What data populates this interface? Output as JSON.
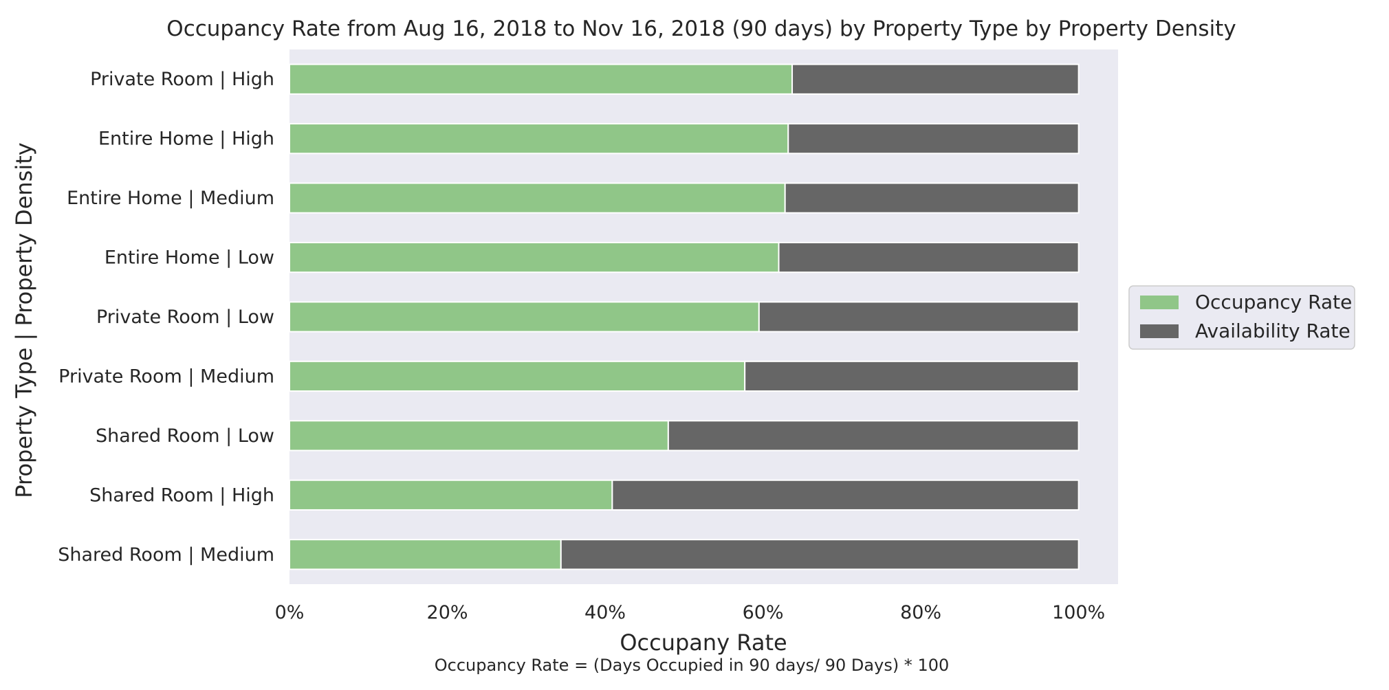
{
  "chart_data": {
    "type": "bar",
    "orientation": "horizontal",
    "stacked": true,
    "title": "Occupancy Rate from Aug 16, 2018 to Nov 16, 2018 (90 days) by Property Type by Property Density",
    "xlabel": "Occupany Rate",
    "ylabel": "Property Type | Property Density",
    "footnote": "Occupancy Rate = (Days Occupied in 90 days/ 90 Days) * 100",
    "categories": [
      "Private Room | High",
      "Entire Home | High",
      "Entire Home | Medium",
      "Entire Home | Low",
      "Private Room | Low",
      "Private Room | Medium",
      "Shared Room | Low",
      "Shared Room | High",
      "Shared Room | Medium"
    ],
    "series": [
      {
        "name": "Occupancy Rate",
        "color": "#90c688",
        "values": [
          63.7,
          63.2,
          62.8,
          62.0,
          59.5,
          57.7,
          48.0,
          40.9,
          34.4
        ]
      },
      {
        "name": "Availability Rate",
        "color": "#666666",
        "values": [
          36.3,
          36.8,
          37.2,
          38.0,
          40.5,
          42.3,
          52.0,
          59.1,
          65.6
        ]
      }
    ],
    "xlim": [
      0,
      105
    ],
    "xticks": [
      0,
      20,
      40,
      60,
      80,
      100
    ],
    "xtick_labels": [
      "0%",
      "20%",
      "40%",
      "60%",
      "80%",
      "100%"
    ],
    "grid": false,
    "legend_position": "center-right, outside plot",
    "plot_background": "#eaeaf2"
  }
}
